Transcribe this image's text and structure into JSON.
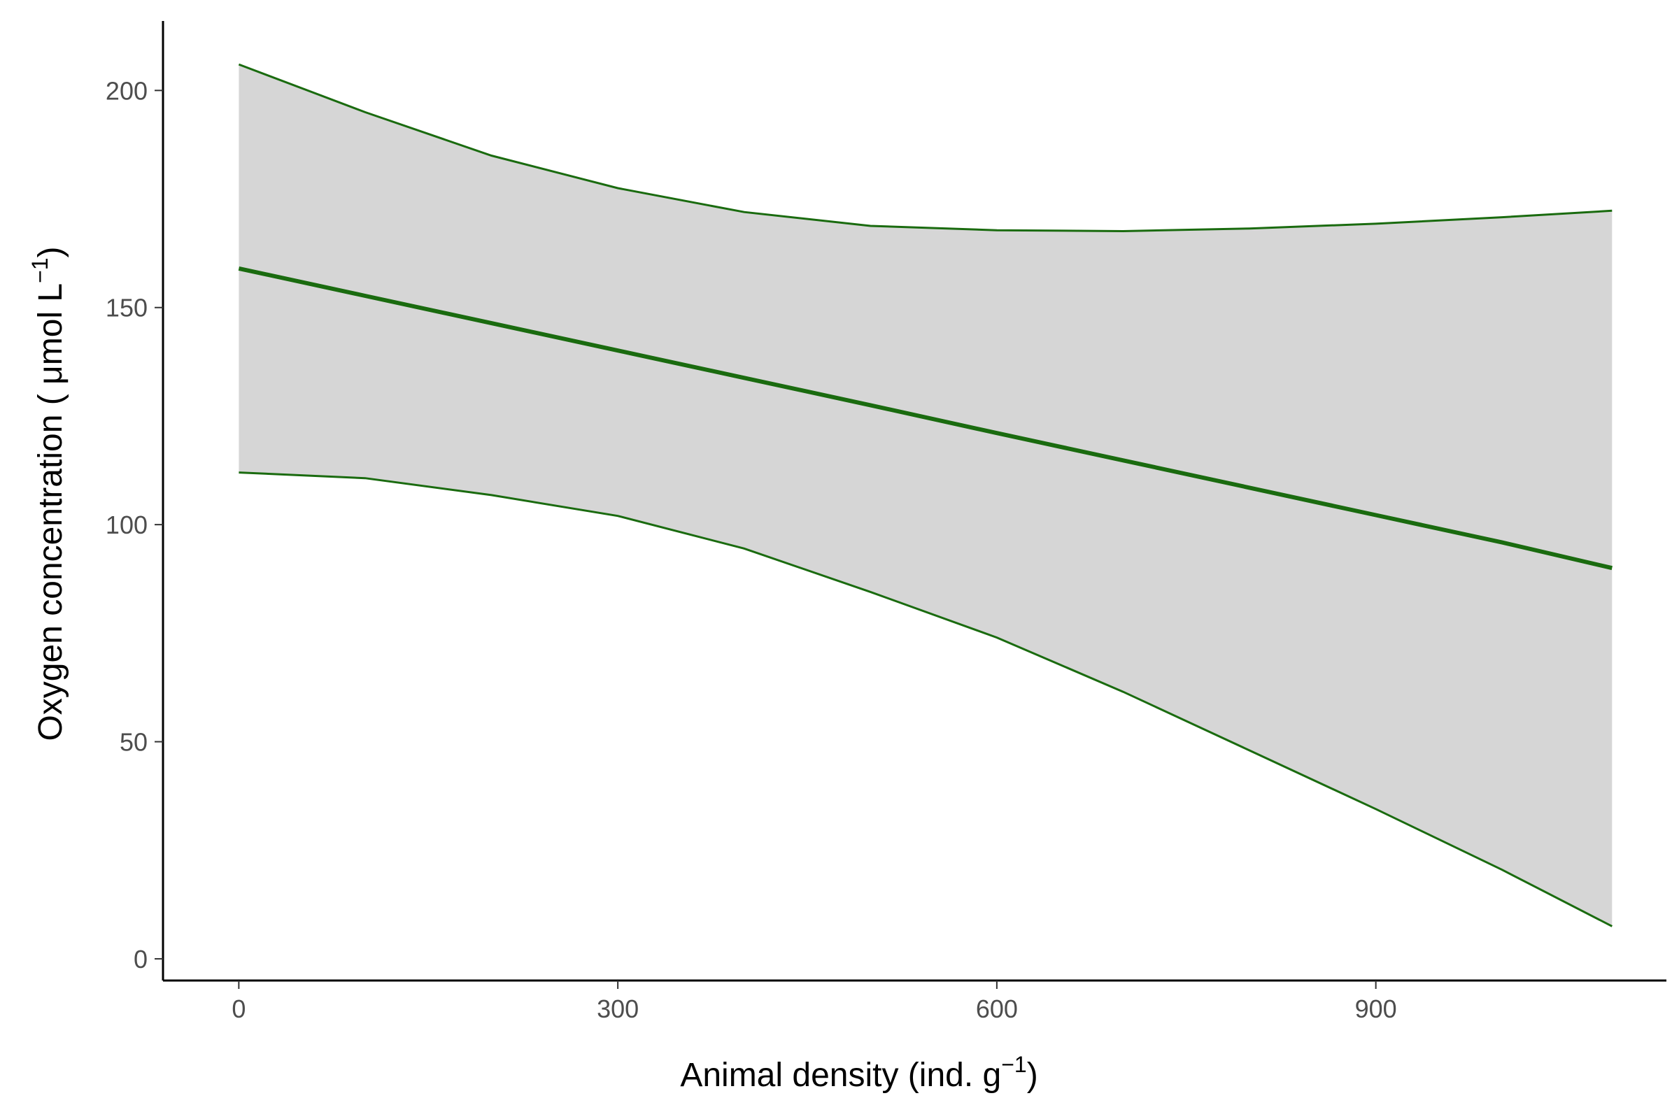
{
  "chart_data": {
    "type": "line",
    "title": "",
    "xlabel": {
      "main": "Animal density (ind. g",
      "sup": "−1",
      "close": ")"
    },
    "ylabel": {
      "main": "Oxygen concentration ( μmol L",
      "sup": "−1",
      "close": ")"
    },
    "xlim": [
      -60,
      1130
    ],
    "ylim": [
      -5,
      216
    ],
    "x_ticks": [
      0,
      300,
      600,
      900
    ],
    "y_ticks": [
      0,
      50,
      100,
      150,
      200
    ],
    "x_tick_labels": [
      "0",
      "300",
      "600",
      "900"
    ],
    "y_tick_labels": [
      "0",
      "50",
      "100",
      "150",
      "200"
    ],
    "grid": false,
    "legend": "none",
    "colors": {
      "line": "#1a6b0f",
      "band": "#d6d6d6",
      "axis": "#000000"
    },
    "series": [
      {
        "x": [
          0,
          100,
          200,
          300,
          400,
          500,
          600,
          700,
          800,
          900,
          1000,
          1087
        ],
        "fit": [
          159,
          152.7,
          146.4,
          140.1,
          133.8,
          127.5,
          121.1,
          114.8,
          108.5,
          102.2,
          95.9,
          90
        ],
        "lower": [
          112,
          110.7,
          106.8,
          102,
          94.5,
          84.5,
          74,
          61.5,
          48,
          34.5,
          20.5,
          7.5
        ],
        "upper": [
          206,
          195,
          185,
          177.5,
          172,
          168.8,
          167.8,
          167.6,
          168.2,
          169.3,
          170.8,
          172.3
        ]
      }
    ]
  }
}
